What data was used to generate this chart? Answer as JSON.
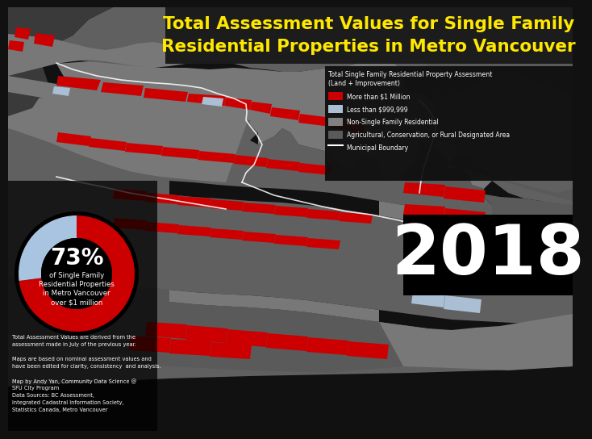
{
  "title_line1": "Total Assessment Values for Single Family",
  "title_line2": "Residential Properties in Metro Vancouver",
  "title_color": "#FFE800",
  "title_bg_color": "#1c1c1c",
  "bg_color": "#111111",
  "year": "2018",
  "year_color": "#ffffff",
  "legend_title1": "Total Single Family Residential Property Assessment",
  "legend_title2": "(Land + Improvement)",
  "legend_items": [
    {
      "label": "More than $1 Million",
      "color": "#cc0000",
      "is_line": false
    },
    {
      "label": "Less than $999,999",
      "color": "#a8c4e0",
      "is_line": false
    },
    {
      "label": "Non-Single Family Residential",
      "color": "#808080",
      "is_line": false
    },
    {
      "label": "Agricultural, Conservation, or Rural Designated Area",
      "color": "#5a5a5a",
      "is_line": false
    },
    {
      "label": "Municipal Boundary",
      "color": "#ffffff",
      "is_line": true
    }
  ],
  "donut_pct": 73,
  "donut_color_main": "#cc0000",
  "donut_color_rest": "#a8c4e0",
  "donut_text_pct": "73%",
  "donut_label_line1": "of Single Family",
  "donut_label_line2": "Residential Properties",
  "donut_label_line3": "in Metro Vancouver",
  "donut_label_line4": "over $1 million",
  "footnote_lines": [
    "Total Assessment Values are derived from the",
    "assessment made in July of the previous year.",
    "",
    "Maps are based on nominal assessment values and",
    "have been edited for clarity, consistency  and analysis.",
    "",
    "Map by Andy Yan, Community Data Science @",
    "SFU City Program",
    "Data Sources: BC Assessment,",
    "Integrated Cadastral Information Society,",
    "Statistics Canada, Metro Vancouver"
  ],
  "map_grey_light": "#787878",
  "map_grey_mid": "#5a5a5a",
  "map_grey_dark": "#3a3a3a",
  "map_black": "#111111",
  "water_color": "#111111",
  "red_color": "#cc0000",
  "blue_color": "#aabfd4"
}
